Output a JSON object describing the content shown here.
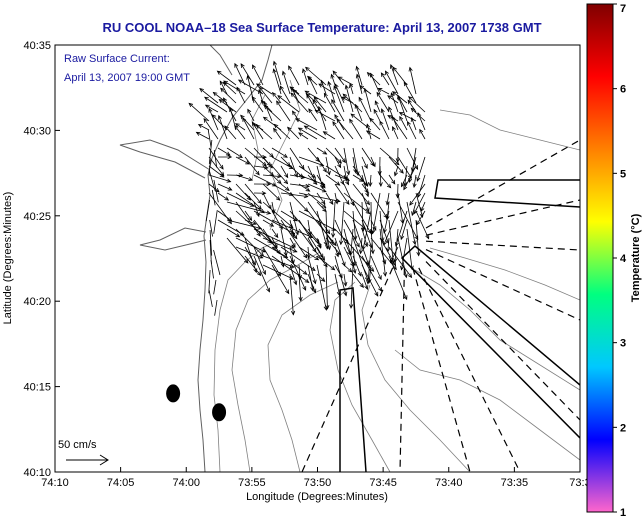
{
  "chart_data": {
    "type": "map",
    "title": "RU COOL  NOAA–18  Sea Surface Temperature:  April 13, 2007 1738 GMT",
    "annotation_lines": [
      "Raw Surface Current:",
      "April 13, 2007 19:00 GMT"
    ],
    "xlabel": "Longitude (Degrees:Minutes)",
    "ylabel": "Latitude (Degrees:Minutes)",
    "x_ticks": [
      "74:10",
      "74:05",
      "74:00",
      "73:55",
      "73:50",
      "73:45",
      "73:40",
      "73:35",
      "73:3"
    ],
    "y_ticks": [
      "40:10",
      "40:15",
      "40:20",
      "40:25",
      "40:30",
      "40:35"
    ],
    "xlim_minutes_west": [
      4450,
      4410
    ],
    "ylim_minutes_north": [
      2410,
      2435
    ],
    "scale_label": "50 cm/s",
    "colorbar": {
      "label": "Temperature (°C)",
      "min": 1,
      "max": 7,
      "ticks": [
        "1",
        "2",
        "3",
        "4",
        "5",
        "6",
        "7"
      ],
      "colors": [
        "#ff66cc",
        "#0000ff",
        "#00c8ff",
        "#00ff80",
        "#ffff00",
        "#ff8000",
        "#ff0000",
        "#800000"
      ]
    },
    "markers": [
      {
        "lon": "74:01",
        "lat": "40:14.6"
      },
      {
        "lon": "73:57.5",
        "lat": "40:13.5"
      }
    ]
  }
}
